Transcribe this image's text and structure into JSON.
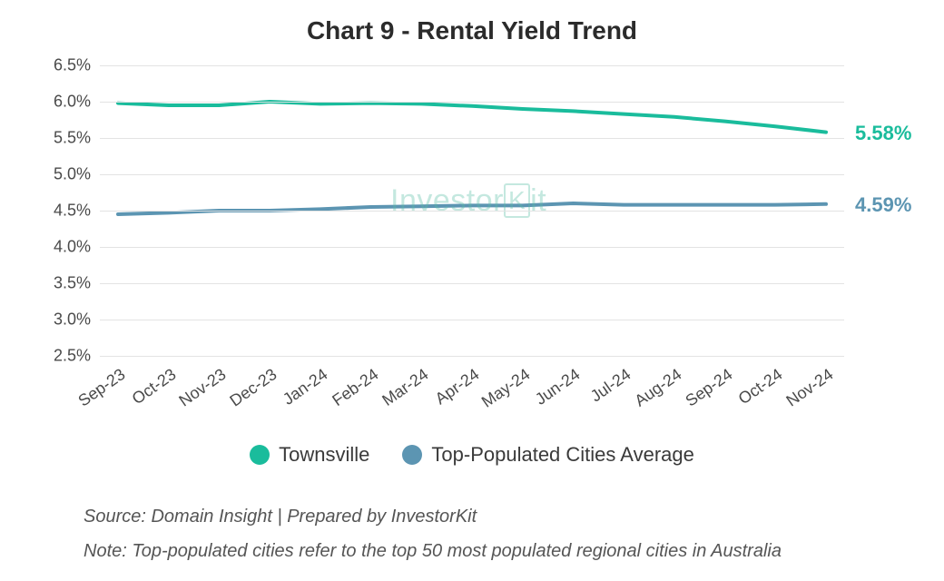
{
  "title": "Chart 9 - Rental Yield Trend",
  "chart": {
    "type": "line",
    "ylim": [
      2.5,
      6.5
    ],
    "ytick_step": 0.5,
    "y_suffix": "%",
    "y_decimals": 1,
    "x_categories": [
      "Sep-23",
      "Oct-23",
      "Nov-23",
      "Dec-23",
      "Jan-24",
      "Feb-24",
      "Mar-24",
      "Apr-24",
      "May-24",
      "Jun-24",
      "Jul-24",
      "Aug-24",
      "Sep-24",
      "Oct-24",
      "Nov-24"
    ],
    "series": [
      {
        "name": "Townsville",
        "color": "#1abc9c",
        "line_width": 4,
        "values": [
          5.98,
          5.95,
          5.95,
          6.0,
          5.97,
          5.98,
          5.97,
          5.94,
          5.9,
          5.87,
          5.83,
          5.79,
          5.73,
          5.66,
          5.58
        ],
        "end_label": "5.58%"
      },
      {
        "name": "Top-Populated Cities Average",
        "color": "#5c95b2",
        "line_width": 4,
        "values": [
          4.45,
          4.47,
          4.5,
          4.5,
          4.52,
          4.55,
          4.56,
          4.57,
          4.57,
          4.6,
          4.58,
          4.58,
          4.58,
          4.58,
          4.59
        ],
        "end_label": "4.59%"
      }
    ],
    "grid_color": "#e3e3e3",
    "background_color": "#ffffff",
    "axis_label_color": "#4a4a4a",
    "axis_fontsize": 18,
    "title_fontsize": 28,
    "legend_fontsize": 22,
    "end_label_fontsize": 22,
    "x_label_rotation_deg": -35
  },
  "legend_items": [
    {
      "label": "Townsville",
      "color": "#1abc9c"
    },
    {
      "label": "Top-Populated Cities Average",
      "color": "#5c95b2"
    }
  ],
  "watermark": {
    "prefix": "Investor",
    "boxed": "K",
    "suffix": "it"
  },
  "source_line": "Source: Domain Insight | Prepared by InvestorKit",
  "note_line": "Note: Top-populated cities refer to the top 50 most populated regional cities in Australia"
}
